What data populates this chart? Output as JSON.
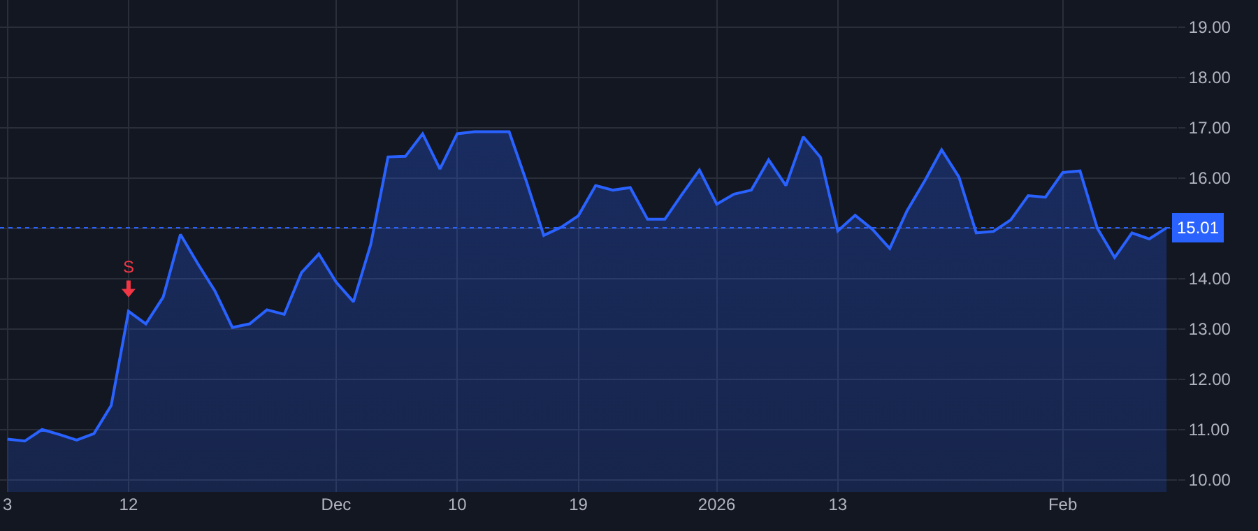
{
  "chart_data": {
    "type": "area",
    "categories": [
      "3",
      null,
      null,
      null,
      null,
      null,
      null,
      "12",
      null,
      null,
      null,
      null,
      null,
      null,
      null,
      null,
      null,
      null,
      null,
      "Dec",
      null,
      null,
      null,
      null,
      null,
      null,
      "10",
      null,
      null,
      null,
      null,
      null,
      null,
      "19",
      null,
      null,
      null,
      null,
      null,
      null,
      null,
      "2026",
      null,
      null,
      null,
      null,
      null,
      null,
      "13",
      null,
      null,
      null,
      null,
      null,
      null,
      null,
      null,
      null,
      null,
      null,
      null,
      "Feb",
      null,
      null,
      null,
      null,
      null,
      null
    ],
    "series": [
      {
        "color": "#2962ff",
        "values": [
          10.81,
          10.77,
          11.0,
          10.9,
          10.79,
          10.92,
          11.48,
          13.35,
          13.1,
          13.63,
          14.88,
          14.3,
          13.75,
          13.03,
          13.1,
          13.38,
          13.29,
          14.12,
          14.49,
          13.93,
          13.54,
          14.68,
          16.42,
          16.43,
          16.88,
          16.18,
          16.88,
          16.92,
          16.92,
          16.92,
          15.93,
          14.86,
          15.02,
          15.25,
          15.85,
          15.76,
          15.81,
          15.18,
          15.18,
          15.68,
          16.16,
          15.48,
          15.68,
          15.76,
          16.36,
          15.85,
          16.82,
          16.41,
          14.95,
          15.26,
          14.98,
          14.6,
          15.35,
          15.93,
          16.56,
          16.02,
          14.91,
          14.94,
          15.17,
          15.65,
          15.62,
          16.11,
          16.14,
          15.0,
          14.42,
          14.91,
          14.79,
          15.01
        ]
      }
    ],
    "ylim": [
      9.76,
      19.54
    ],
    "yticks": [
      {
        "value": 10,
        "label": "10.00"
      },
      {
        "value": 11,
        "label": "11.00"
      },
      {
        "value": 12,
        "label": "12.00"
      },
      {
        "value": 13,
        "label": "13.00"
      },
      {
        "value": 14,
        "label": "14.00"
      },
      {
        "value": 15,
        "label": null
      },
      {
        "value": 16,
        "label": "16.00"
      },
      {
        "value": 17,
        "label": "17.00"
      },
      {
        "value": 18,
        "label": "18.00"
      },
      {
        "value": 19,
        "label": "19.00"
      }
    ],
    "ref_lines": [
      {
        "axis": "y",
        "value": 15.01,
        "label": "15.01",
        "color": "#2962ff",
        "line_style": "dotted"
      }
    ],
    "annotations": [
      {
        "text": "S",
        "x": "12",
        "y": 13.35
      }
    ],
    "grid": true,
    "marker": "none",
    "line_style": "solid"
  }
}
